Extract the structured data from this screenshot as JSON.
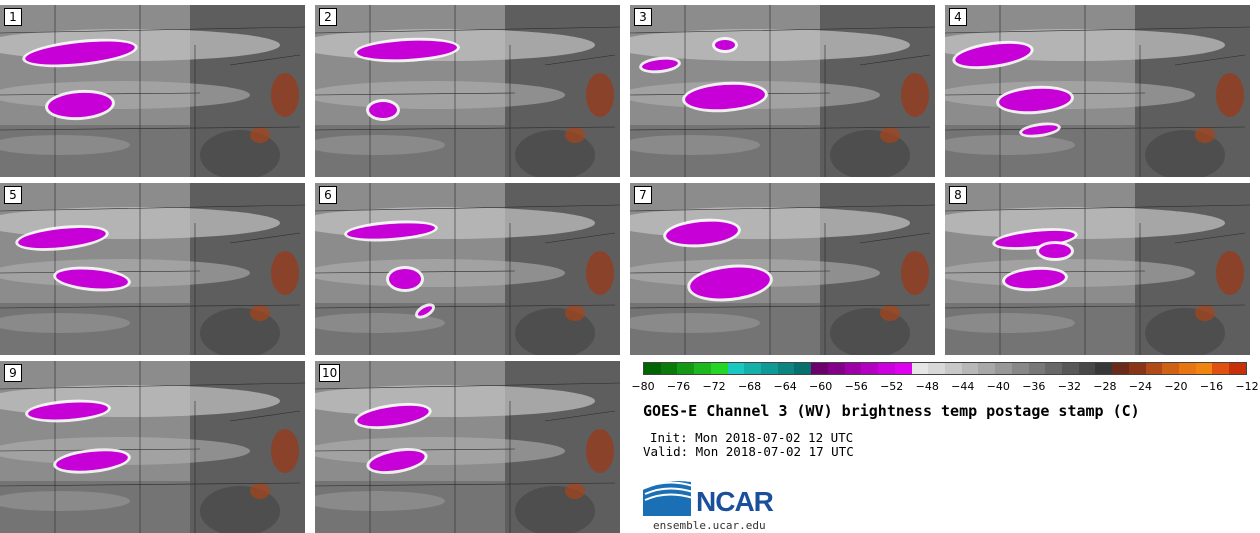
{
  "panels": [
    {
      "label": "1"
    },
    {
      "label": "2"
    },
    {
      "label": "3"
    },
    {
      "label": "4"
    },
    {
      "label": "5"
    },
    {
      "label": "6"
    },
    {
      "label": "7"
    },
    {
      "label": "8"
    },
    {
      "label": "9"
    },
    {
      "label": "10"
    }
  ],
  "colorbar": {
    "ticks": [
      "−80",
      "−76",
      "−72",
      "−68",
      "−64",
      "−60",
      "−56",
      "−52",
      "−48",
      "−44",
      "−40",
      "−36",
      "−32",
      "−28",
      "−24",
      "−20",
      "−16",
      "−12"
    ],
    "colors": [
      "#006400",
      "#0a7a0a",
      "#139913",
      "#1db81d",
      "#26d626",
      "#19c8c0",
      "#14b0aa",
      "#109a95",
      "#0c8580",
      "#08706c",
      "#6e006e",
      "#85008a",
      "#9c00a6",
      "#b400c2",
      "#cc00de",
      "#e000f0",
      "#e6e6e6",
      "#d8d8d8",
      "#c8c8c8",
      "#b8b8b8",
      "#a8a8a8",
      "#989898",
      "#888888",
      "#787878",
      "#686868",
      "#585858",
      "#484848",
      "#383838",
      "#6b2a1a",
      "#8a3418",
      "#b04a16",
      "#d06014",
      "#e87412",
      "#f08410",
      "#e05010",
      "#c83008"
    ]
  },
  "title": "GOES-E Channel 3 (WV) brightness temp postage stamp (C)",
  "init": "Init: Mon 2018-07-02 12 UTC",
  "valid": "Valid: Mon 2018-07-02 17 UTC",
  "logo_text": "NCAR",
  "site": "ensemble.ucar.edu"
}
